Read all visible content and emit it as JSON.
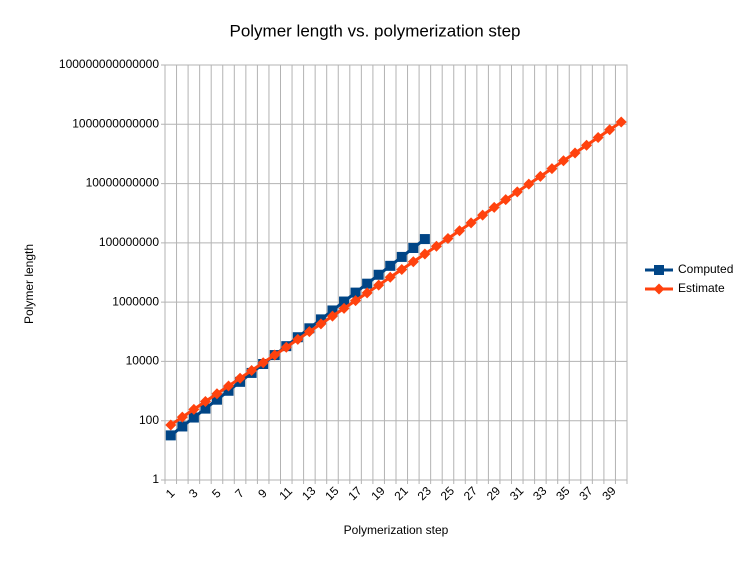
{
  "chart_data": {
    "type": "line",
    "title": "Polymer length vs. polymerization step",
    "x_label": "Polymerization step",
    "y_label": "Polymer length",
    "categories": [
      1,
      null,
      3,
      null,
      5,
      null,
      7,
      null,
      9,
      null,
      11,
      null,
      13,
      null,
      15,
      null,
      17,
      null,
      19,
      null,
      21,
      null,
      23,
      null,
      25,
      null,
      27,
      null,
      29,
      null,
      31,
      null,
      33,
      null,
      35,
      null,
      37,
      null,
      39,
      null
    ],
    "series": [
      {
        "name": "Computed",
        "color": "#004586",
        "marker": "square",
        "values": [
          32,
          64,
          128,
          256,
          512,
          1024,
          2048,
          4096,
          8192,
          16384,
          32768,
          65536,
          131072,
          262144,
          524288,
          1048576,
          2097152,
          4194304,
          8388608,
          16777216,
          33554432,
          67108864,
          134217728,
          null,
          null,
          null,
          null,
          null,
          null,
          null,
          null,
          null,
          null,
          null,
          null,
          null,
          null,
          null,
          null,
          null
        ]
      },
      {
        "name": "Estimate",
        "color": "#ff420e",
        "marker": "diamond",
        "values": [
          72,
          132,
          242,
          443,
          809,
          1479,
          2704,
          4943,
          9036,
          16520,
          30200,
          55200,
          101000,
          184500,
          337000,
          617000,
          1127000,
          2061000,
          3767000,
          6887000,
          12590000,
          23010000,
          42070000,
          76910000,
          140600000,
          257000000,
          469900000,
          859000000,
          1570000000,
          2871000000,
          5248000000,
          9594000000,
          17540000000,
          32060000000,
          58610000000,
          107200000000,
          195900000000,
          358100000000,
          654600000000,
          1197000000000
        ]
      }
    ],
    "ylim": [
      1,
      100000000000000
    ],
    "yticks": [
      1,
      100,
      10000,
      1000000,
      100000000,
      10000000000,
      1000000000000,
      100000000000000
    ],
    "ylog": true,
    "grid": true,
    "legend": "right"
  }
}
